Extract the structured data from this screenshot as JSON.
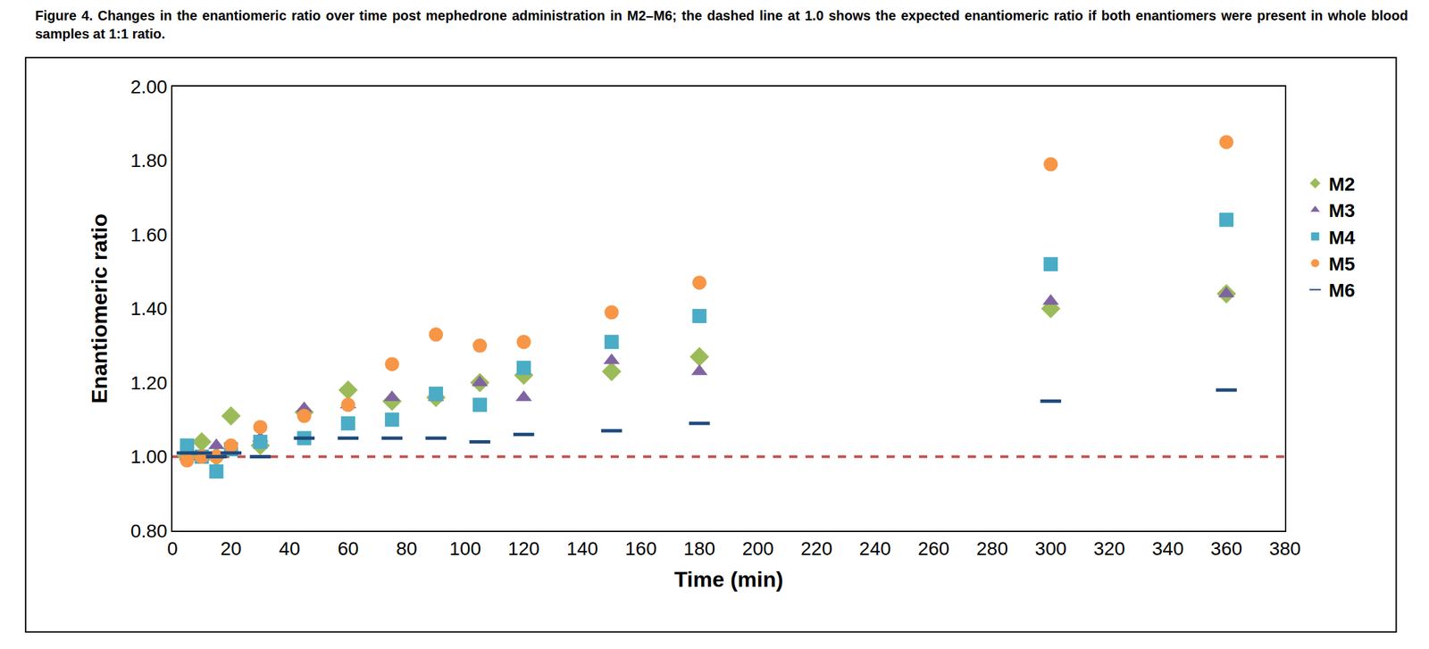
{
  "chart_data": {
    "type": "scatter",
    "title": "Figure 4. Changes in the enantiomeric ratio over time post mephedrone administration in M2–M6; the dashed line at 1.0 shows the expected enantiomeric ratio if both enantiomers were present in whole blood samples at 1:1 ratio.",
    "x_label": "Time (min)",
    "y_label": "Enantiomeric ratio",
    "x": [
      5,
      10,
      15,
      20,
      30,
      45,
      60,
      75,
      90,
      105,
      120,
      150,
      180,
      300,
      360
    ],
    "series": [
      {
        "name": "M2",
        "color": "#9bbb59",
        "marker": "diamond",
        "values": [
          1.0,
          1.04,
          1.0,
          1.11,
          1.03,
          1.12,
          1.18,
          1.15,
          1.16,
          1.2,
          1.22,
          1.23,
          1.27,
          1.4,
          1.44
        ]
      },
      {
        "name": "M3",
        "color": "#8064a2",
        "marker": "triangle-up",
        "values": [
          1.0,
          1.0,
          1.03,
          1.02,
          1.05,
          1.13,
          1.14,
          1.16,
          1.16,
          1.2,
          1.16,
          1.26,
          1.23,
          1.42,
          1.44
        ]
      },
      {
        "name": "M4",
        "color": "#4bacc6",
        "marker": "square",
        "values": [
          1.03,
          1.0,
          0.96,
          1.02,
          1.04,
          1.05,
          1.09,
          1.1,
          1.17,
          1.14,
          1.24,
          1.31,
          1.38,
          1.52,
          1.64
        ]
      },
      {
        "name": "M5",
        "color": "#f79646",
        "marker": "circle",
        "values": [
          0.99,
          1.0,
          1.0,
          1.03,
          1.08,
          1.11,
          1.14,
          1.25,
          1.33,
          1.3,
          1.31,
          1.39,
          1.47,
          1.79,
          1.85
        ]
      },
      {
        "name": "M6",
        "color": "#1f497d",
        "marker": "dash",
        "values": [
          1.01,
          1.01,
          1.0,
          1.01,
          1.0,
          1.05,
          1.05,
          1.05,
          1.05,
          1.04,
          1.06,
          1.07,
          1.09,
          1.15,
          1.18
        ]
      }
    ],
    "reference_line": {
      "y": 1.0,
      "color": "#c0504d",
      "line_style": "dash"
    },
    "xlim": [
      0,
      380
    ],
    "xticks": [
      0,
      20,
      40,
      60,
      80,
      100,
      120,
      140,
      160,
      180,
      200,
      220,
      240,
      260,
      280,
      300,
      320,
      340,
      360,
      380
    ],
    "ylim": [
      0.8,
      2.0
    ],
    "yticks": [
      {
        "value": 0.8,
        "label": "0.80"
      },
      {
        "value": 1.0,
        "label": "1.00"
      },
      {
        "value": 1.2,
        "label": "1.20"
      },
      {
        "value": 1.4,
        "label": "1.40"
      },
      {
        "value": 1.6,
        "label": "1.60"
      },
      {
        "value": 1.8,
        "label": "1.80"
      },
      {
        "value": 2.0,
        "label": "2.00"
      }
    ],
    "grid": false,
    "legend": "right"
  }
}
